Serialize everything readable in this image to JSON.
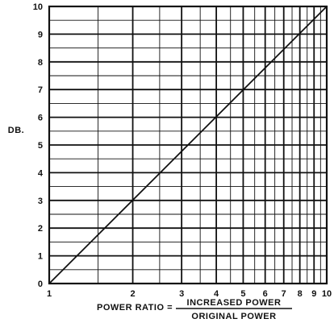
{
  "chart_data": {
    "type": "line",
    "title": "",
    "ylabel": "DB.",
    "xlabel": {
      "prefix": "POWER RATIO =",
      "numerator": "INCREASED POWER",
      "denominator": "ORIGINAL POWER"
    },
    "x_scale": "log",
    "xlim": [
      1,
      10
    ],
    "ylim": [
      0,
      10
    ],
    "grid": true,
    "x_gridlines": [
      1,
      1.5,
      2,
      2.5,
      3,
      3.5,
      4,
      4.5,
      5,
      5.5,
      6,
      6.5,
      7,
      7.5,
      8,
      8.5,
      9,
      9.5,
      10
    ],
    "y_gridlines": [
      0,
      0.5,
      1,
      1.5,
      2,
      2.5,
      3,
      3.5,
      4,
      4.5,
      5,
      5.5,
      6,
      6.5,
      7,
      7.5,
      8,
      8.5,
      9,
      9.5,
      10
    ],
    "x_ticks": [
      {
        "value": 1,
        "label": "1"
      },
      {
        "value": 2,
        "label": "2"
      },
      {
        "value": 3,
        "label": "3"
      },
      {
        "value": 4,
        "label": "4"
      },
      {
        "value": 5,
        "label": "5"
      },
      {
        "value": 6,
        "label": "6"
      },
      {
        "value": 7,
        "label": "7"
      },
      {
        "value": 8,
        "label": "8"
      },
      {
        "value": 9,
        "label": "9"
      },
      {
        "value": 10,
        "label": "10"
      }
    ],
    "y_ticks": [
      {
        "value": 0,
        "label": "0"
      },
      {
        "value": 1,
        "label": "1"
      },
      {
        "value": 2,
        "label": "2"
      },
      {
        "value": 3,
        "label": "3"
      },
      {
        "value": 4,
        "label": "4"
      },
      {
        "value": 5,
        "label": "5"
      },
      {
        "value": 6,
        "label": "6"
      },
      {
        "value": 7,
        "label": "7"
      },
      {
        "value": 8,
        "label": "8"
      },
      {
        "value": 9,
        "label": "9"
      },
      {
        "value": 10,
        "label": "10"
      }
    ],
    "series": [
      {
        "x": [
          1,
          10
        ],
        "y": [
          0,
          10
        ]
      }
    ],
    "colors": {
      "ink": "#111111",
      "background": "#ffffff"
    }
  }
}
